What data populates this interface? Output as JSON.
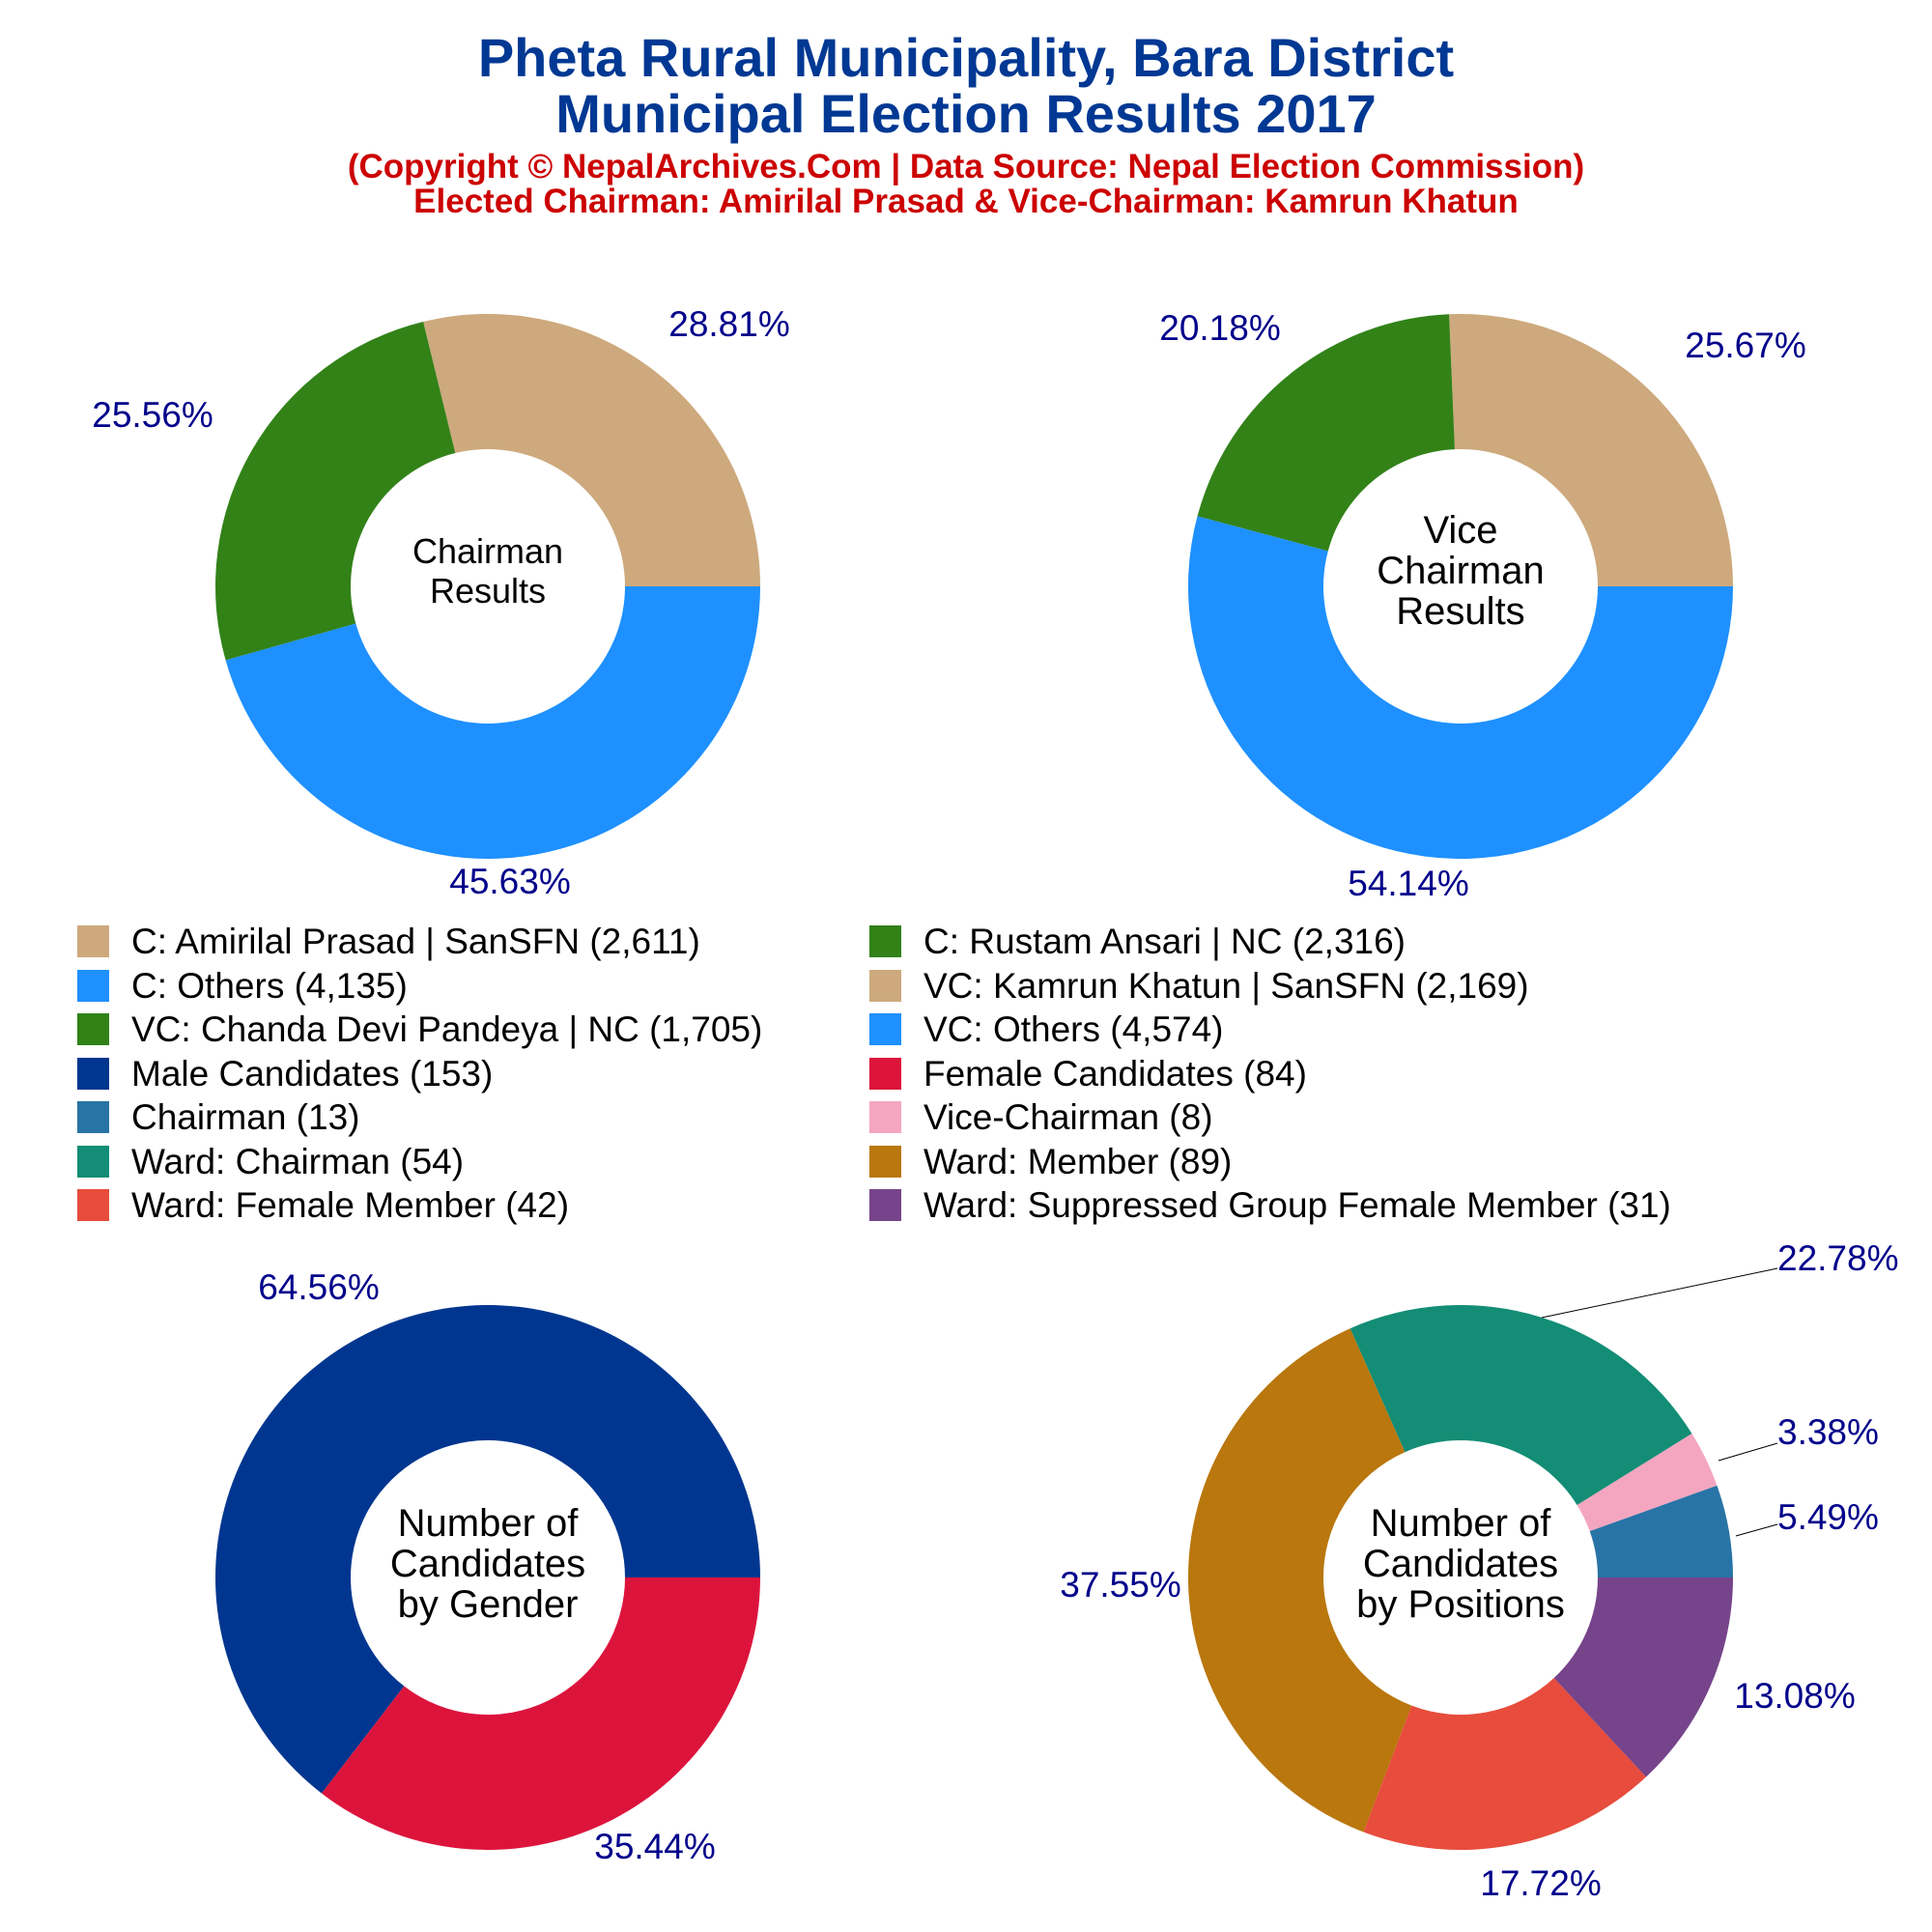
{
  "title": {
    "line1": "Pheta Rural Municipality, Bara District",
    "line2": "Municipal Election Results 2017",
    "copyright": "(Copyright © NepalArchives.Com | Data Source: Nepal Election Commission)",
    "elected": "Elected Chairman: Amirilal Prasad & Vice-Chairman: Kamrun Khatun"
  },
  "colors": {
    "title": "#003893",
    "subtitle": "#cc0000",
    "percent_label": "#00008b",
    "sansfn": "#cda97d",
    "others": "#1e90ff",
    "nc": "#328218",
    "male": "#00368f",
    "female": "#dc143c",
    "chairman": "#2874a6",
    "vice_chairman": "#f4a6c0",
    "ward_chairman": "#138d75",
    "ward_member": "#b9770e",
    "ward_female_member": "#e74c3c",
    "ward_suppressed": "#76448a"
  },
  "legend": [
    {
      "label": "C: Amirilal Prasad | SanSFN (2,611)",
      "color": "#cda97d"
    },
    {
      "label": "C: Rustam Ansari | NC (2,316)",
      "color": "#328218"
    },
    {
      "label": "C: Others (4,135)",
      "color": "#1e90ff"
    },
    {
      "label": "VC: Kamrun Khatun | SanSFN (2,169)",
      "color": "#cda97d"
    },
    {
      "label": "VC: Chanda Devi Pandeya | NC (1,705)",
      "color": "#328218"
    },
    {
      "label": "VC: Others (4,574)",
      "color": "#1e90ff"
    },
    {
      "label": "Male Candidates (153)",
      "color": "#00368f"
    },
    {
      "label": "Female Candidates (84)",
      "color": "#dc143c"
    },
    {
      "label": "Chairman (13)",
      "color": "#2874a6"
    },
    {
      "label": "Vice-Chairman (8)",
      "color": "#f4a6c0"
    },
    {
      "label": "Ward: Chairman (54)",
      "color": "#138d75"
    },
    {
      "label": "Ward: Member (89)",
      "color": "#b9770e"
    },
    {
      "label": "Ward: Female Member (42)",
      "color": "#e74c3c"
    },
    {
      "label": "Ward: Suppressed Group Female Member (31)",
      "color": "#76448a"
    }
  ],
  "chart_data": [
    {
      "type": "pie",
      "center_label": [
        "Chairman",
        "Results"
      ],
      "slices": [
        {
          "name": "C: Amirilal Prasad | SanSFN",
          "value": 2611,
          "percent": "28.81%",
          "color": "#cda97d"
        },
        {
          "name": "C: Rustam Ansari | NC",
          "value": 2316,
          "percent": "25.56%",
          "color": "#328218"
        },
        {
          "name": "C: Others",
          "value": 4135,
          "percent": "45.63%",
          "color": "#1e90ff"
        }
      ]
    },
    {
      "type": "pie",
      "center_label": [
        "Vice",
        "Chairman",
        "Results"
      ],
      "slices": [
        {
          "name": "VC: Kamrun Khatun | SanSFN",
          "value": 2169,
          "percent": "25.67%",
          "color": "#cda97d"
        },
        {
          "name": "VC: Chanda Devi Pandeya | NC",
          "value": 1705,
          "percent": "20.18%",
          "color": "#328218"
        },
        {
          "name": "VC: Others",
          "value": 4574,
          "percent": "54.14%",
          "color": "#1e90ff"
        }
      ]
    },
    {
      "type": "pie",
      "center_label": [
        "Number of",
        "Candidates",
        "by Gender"
      ],
      "slices": [
        {
          "name": "Male Candidates",
          "value": 153,
          "percent": "64.56%",
          "color": "#00368f"
        },
        {
          "name": "Female Candidates",
          "value": 84,
          "percent": "35.44%",
          "color": "#dc143c"
        }
      ]
    },
    {
      "type": "pie",
      "center_label": [
        "Number of",
        "Candidates",
        "by Positions"
      ],
      "slices": [
        {
          "name": "Chairman",
          "value": 13,
          "percent": "5.49%",
          "color": "#2874a6"
        },
        {
          "name": "Vice-Chairman",
          "value": 8,
          "percent": "3.38%",
          "color": "#f4a6c0"
        },
        {
          "name": "Ward: Chairman",
          "value": 54,
          "percent": "22.78%",
          "color": "#138d75"
        },
        {
          "name": "Ward: Member",
          "value": 89,
          "percent": "37.55%",
          "color": "#b9770e"
        },
        {
          "name": "Ward: Female Member",
          "value": 42,
          "percent": "17.72%",
          "color": "#e74c3c"
        },
        {
          "name": "Ward: Suppressed Group Female Member",
          "value": 31,
          "percent": "13.08%",
          "color": "#76448a"
        }
      ]
    }
  ]
}
